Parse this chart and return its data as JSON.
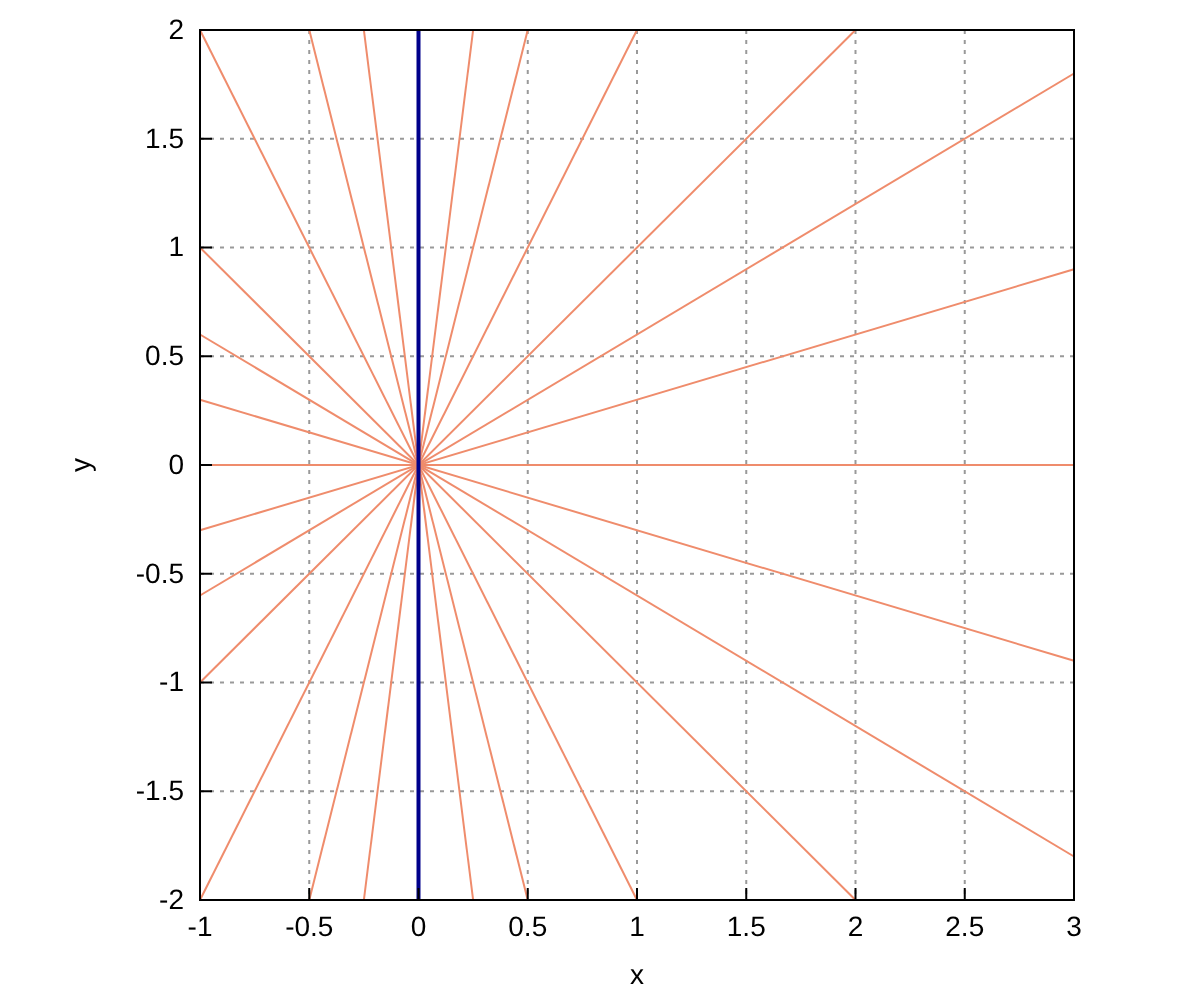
{
  "chart_data": {
    "type": "line",
    "xlabel": "x",
    "ylabel": "y",
    "xlim": [
      -1,
      3
    ],
    "ylim": [
      -2,
      2
    ],
    "xticks": [
      -1,
      -0.5,
      0,
      0.5,
      1,
      1.5,
      2,
      2.5,
      3
    ],
    "yticks": [
      -2,
      -1.5,
      -1,
      -0.5,
      0,
      0.5,
      1,
      1.5,
      2
    ],
    "grid": true,
    "series": [
      {
        "color": "#ef8c6c",
        "x": [
          -1,
          3
        ],
        "values": [
          0,
          0
        ]
      },
      {
        "color": "#ef8c6c",
        "x": [
          -1,
          3
        ],
        "values": [
          -0.3,
          0.9
        ]
      },
      {
        "color": "#ef8c6c",
        "x": [
          -1,
          3
        ],
        "values": [
          0.3,
          -0.9
        ]
      },
      {
        "color": "#ef8c6c",
        "x": [
          -1,
          3
        ],
        "values": [
          -0.6,
          1.8
        ]
      },
      {
        "color": "#ef8c6c",
        "x": [
          -1,
          3
        ],
        "values": [
          0.6,
          -1.8
        ]
      },
      {
        "color": "#ef8c6c",
        "x": [
          -1,
          2
        ],
        "values": [
          -1,
          2
        ]
      },
      {
        "color": "#ef8c6c",
        "x": [
          -1,
          2
        ],
        "values": [
          1,
          -2
        ]
      },
      {
        "color": "#ef8c6c",
        "x": [
          -1,
          1
        ],
        "values": [
          -2,
          2
        ]
      },
      {
        "color": "#ef8c6c",
        "x": [
          -1,
          1
        ],
        "values": [
          2,
          -2
        ]
      },
      {
        "color": "#ef8c6c",
        "x": [
          -0.5,
          0.5
        ],
        "values": [
          -2,
          2
        ]
      },
      {
        "color": "#ef8c6c",
        "x": [
          -0.5,
          0.5
        ],
        "values": [
          2,
          -2
        ]
      },
      {
        "color": "#ef8c6c",
        "x": [
          -0.25,
          0.25
        ],
        "values": [
          -2,
          2
        ]
      },
      {
        "color": "#ef8c6c",
        "x": [
          -0.25,
          0.25
        ],
        "values": [
          2,
          -2
        ]
      },
      {
        "color": "#00008b",
        "x": [
          0,
          0
        ],
        "values": [
          -2,
          2
        ]
      }
    ]
  }
}
